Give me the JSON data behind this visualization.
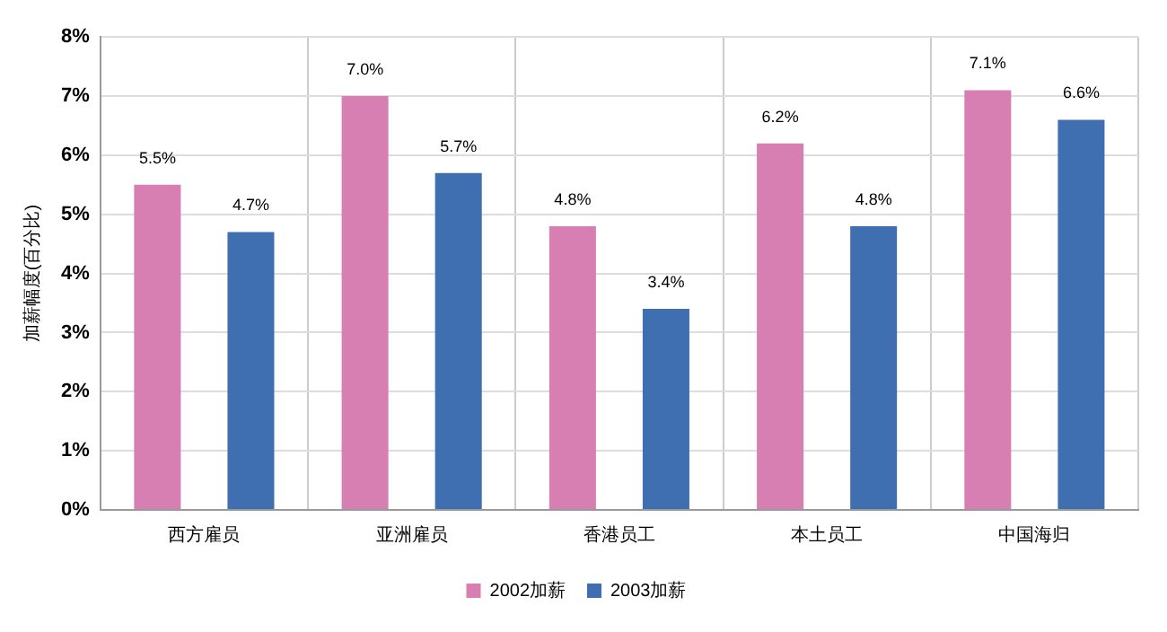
{
  "chart_data": {
    "type": "bar",
    "ylabel": "加薪幅度(百分比)",
    "categories": [
      "西方雇员",
      "亚洲雇员",
      "香港员工",
      "本土员工",
      "中国海归"
    ],
    "series": [
      {
        "name": "2002加薪",
        "color": "#d77fb3",
        "values": [
          5.5,
          7.0,
          4.8,
          6.2,
          7.1
        ],
        "value_labels": [
          "5.5%",
          "7.0%",
          "4.8%",
          "6.2%",
          "7.1%"
        ]
      },
      {
        "name": "2003加薪",
        "color": "#3f6fb0",
        "values": [
          4.7,
          5.7,
          3.4,
          4.8,
          6.6
        ],
        "value_labels": [
          "4.7%",
          "5.7%",
          "3.4%",
          "4.8%",
          "6.6%"
        ]
      }
    ],
    "ylim": [
      0,
      8
    ],
    "yticks": [
      {
        "value": 0,
        "label": "0%"
      },
      {
        "value": 1,
        "label": "1%"
      },
      {
        "value": 2,
        "label": "2%"
      },
      {
        "value": 3,
        "label": "3%"
      },
      {
        "value": 4,
        "label": "4%"
      },
      {
        "value": 5,
        "label": "5%"
      },
      {
        "value": 6,
        "label": "6%"
      },
      {
        "value": 7,
        "label": "7%"
      },
      {
        "value": 8,
        "label": "8%"
      }
    ],
    "grid": true,
    "legend": "bottom"
  }
}
